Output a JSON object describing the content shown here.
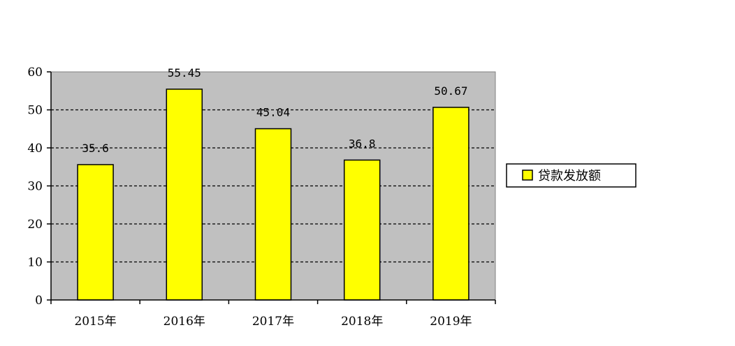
{
  "chart_data": {
    "type": "bar",
    "categories": [
      "2015年",
      "2016年",
      "2017年",
      "2018年",
      "2019年"
    ],
    "series": [
      {
        "name": "贷款发放额",
        "values": [
          35.6,
          55.45,
          45.04,
          36.8,
          50.67
        ],
        "color": "#ffff00"
      }
    ],
    "data_labels": [
      "35.6",
      "55.45",
      "45.04",
      "36.8",
      "50.67"
    ],
    "ylim": [
      0,
      60
    ],
    "yticks": [
      0,
      10,
      20,
      30,
      40,
      50,
      60
    ],
    "grid": true,
    "plot_background": "#c0c0c0",
    "legend_position": "right"
  }
}
